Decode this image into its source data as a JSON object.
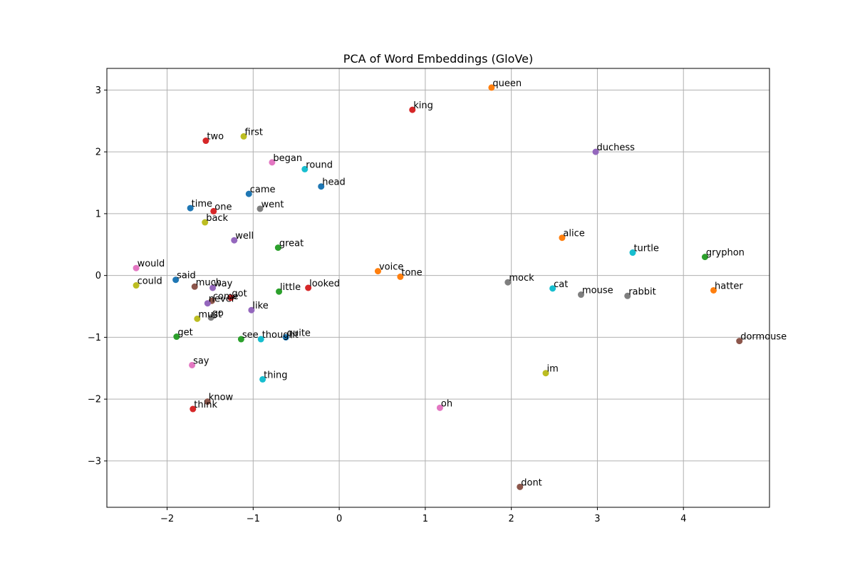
{
  "chart_data": {
    "type": "scatter",
    "title": "PCA of Word Embeddings (GloVe)",
    "xlabel": "",
    "ylabel": "",
    "xlim": [
      -2.7,
      5.0
    ],
    "ylim": [
      -3.75,
      3.35
    ],
    "xticks": [
      -2,
      -1,
      0,
      1,
      2,
      3,
      4
    ],
    "yticks": [
      -3,
      -2,
      -1,
      0,
      1,
      2,
      3
    ],
    "xtick_labels": [
      "−2",
      "−1",
      "0",
      "1",
      "2",
      "3",
      "4"
    ],
    "ytick_labels": [
      "−3",
      "−2",
      "−1",
      "0",
      "1",
      "2",
      "3"
    ],
    "grid": true,
    "colors": [
      "#1f77b4",
      "#ff7f0e",
      "#2ca02c",
      "#d62728",
      "#9467bd",
      "#8c564b",
      "#e377c2",
      "#7f7f7f",
      "#bcbd22",
      "#17becf"
    ],
    "points": [
      {
        "label": "queen",
        "x": 1.77,
        "y": 3.04,
        "color": "#ff7f0e"
      },
      {
        "label": "king",
        "x": 0.85,
        "y": 2.68,
        "color": "#d62728"
      },
      {
        "label": "duchess",
        "x": 2.98,
        "y": 2.0,
        "color": "#9467bd"
      },
      {
        "label": "first",
        "x": -1.11,
        "y": 2.25,
        "color": "#bcbd22"
      },
      {
        "label": "two",
        "x": -1.55,
        "y": 2.18,
        "color": "#d62728"
      },
      {
        "label": "began",
        "x": -0.78,
        "y": 1.83,
        "color": "#e377c2"
      },
      {
        "label": "round",
        "x": -0.4,
        "y": 1.72,
        "color": "#17becf"
      },
      {
        "label": "head",
        "x": -0.21,
        "y": 1.44,
        "color": "#1f77b4"
      },
      {
        "label": "came",
        "x": -1.05,
        "y": 1.32,
        "color": "#1f77b4"
      },
      {
        "label": "time",
        "x": -1.73,
        "y": 1.09,
        "color": "#1f77b4"
      },
      {
        "label": "one",
        "x": -1.46,
        "y": 1.04,
        "color": "#d62728"
      },
      {
        "label": "went",
        "x": -0.92,
        "y": 1.08,
        "color": "#7f7f7f"
      },
      {
        "label": "back",
        "x": -1.56,
        "y": 0.86,
        "color": "#bcbd22"
      },
      {
        "label": "well",
        "x": -1.22,
        "y": 0.57,
        "color": "#9467bd"
      },
      {
        "label": "great",
        "x": -0.71,
        "y": 0.45,
        "color": "#2ca02c"
      },
      {
        "label": "alice",
        "x": 2.59,
        "y": 0.61,
        "color": "#ff7f0e"
      },
      {
        "label": "turtle",
        "x": 3.41,
        "y": 0.37,
        "color": "#17becf"
      },
      {
        "label": "gryphon",
        "x": 4.25,
        "y": 0.3,
        "color": "#2ca02c"
      },
      {
        "label": "would",
        "x": -2.36,
        "y": 0.12,
        "color": "#e377c2"
      },
      {
        "label": "voice",
        "x": 0.45,
        "y": 0.07,
        "color": "#ff7f0e"
      },
      {
        "label": "tone",
        "x": 0.71,
        "y": -0.02,
        "color": "#ff7f0e"
      },
      {
        "label": "said",
        "x": -1.9,
        "y": -0.07,
        "color": "#1f77b4"
      },
      {
        "label": "could",
        "x": -2.36,
        "y": -0.16,
        "color": "#bcbd22"
      },
      {
        "label": "much",
        "x": -1.68,
        "y": -0.18,
        "color": "#8c564b"
      },
      {
        "label": "way",
        "x": -1.47,
        "y": -0.2,
        "color": "#9467bd"
      },
      {
        "label": "looked",
        "x": -0.36,
        "y": -0.2,
        "color": "#d62728"
      },
      {
        "label": "mock",
        "x": 1.96,
        "y": -0.11,
        "color": "#7f7f7f"
      },
      {
        "label": "cat",
        "x": 2.48,
        "y": -0.21,
        "color": "#17becf"
      },
      {
        "label": "hatter",
        "x": 4.35,
        "y": -0.24,
        "color": "#ff7f0e"
      },
      {
        "label": "mouse",
        "x": 2.81,
        "y": -0.31,
        "color": "#7f7f7f"
      },
      {
        "label": "rabbit",
        "x": 3.35,
        "y": -0.33,
        "color": "#7f7f7f"
      },
      {
        "label": "little",
        "x": -0.7,
        "y": -0.26,
        "color": "#2ca02c"
      },
      {
        "label": "got",
        "x": -1.26,
        "y": -0.36,
        "color": "#d62728"
      },
      {
        "label": "come",
        "x": -1.48,
        "y": -0.41,
        "color": "#8c564b"
      },
      {
        "label": "never",
        "x": -1.53,
        "y": -0.45,
        "color": "#9467bd"
      },
      {
        "label": "like",
        "x": -1.02,
        "y": -0.56,
        "color": "#9467bd"
      },
      {
        "label": "go",
        "x": -1.49,
        "y": -0.68,
        "color": "#7f7f7f"
      },
      {
        "label": "must",
        "x": -1.65,
        "y": -0.7,
        "color": "#bcbd22"
      },
      {
        "label": "get",
        "x": -1.89,
        "y": -0.99,
        "color": "#2ca02c"
      },
      {
        "label": "see",
        "x": -1.14,
        "y": -1.03,
        "color": "#2ca02c"
      },
      {
        "label": "thought",
        "x": -0.91,
        "y": -1.03,
        "color": "#17becf"
      },
      {
        "label": "quite",
        "x": -0.62,
        "y": -1.0,
        "color": "#1f77b4"
      },
      {
        "label": "dont",
        "x": 2.1,
        "y": -3.42,
        "color": "#8c564b"
      },
      {
        "label": "dormouse",
        "x": 4.65,
        "y": -1.06,
        "color": "#8c564b"
      },
      {
        "label": "say",
        "x": -1.71,
        "y": -1.45,
        "color": "#e377c2"
      },
      {
        "label": "im",
        "x": 2.4,
        "y": -1.58,
        "color": "#bcbd22"
      },
      {
        "label": "thing",
        "x": -0.89,
        "y": -1.68,
        "color": "#17becf"
      },
      {
        "label": "oh",
        "x": 1.17,
        "y": -2.14,
        "color": "#e377c2"
      },
      {
        "label": "know",
        "x": -1.53,
        "y": -2.04,
        "color": "#8c564b"
      },
      {
        "label": "think",
        "x": -1.7,
        "y": -2.16,
        "color": "#d62728"
      }
    ]
  }
}
